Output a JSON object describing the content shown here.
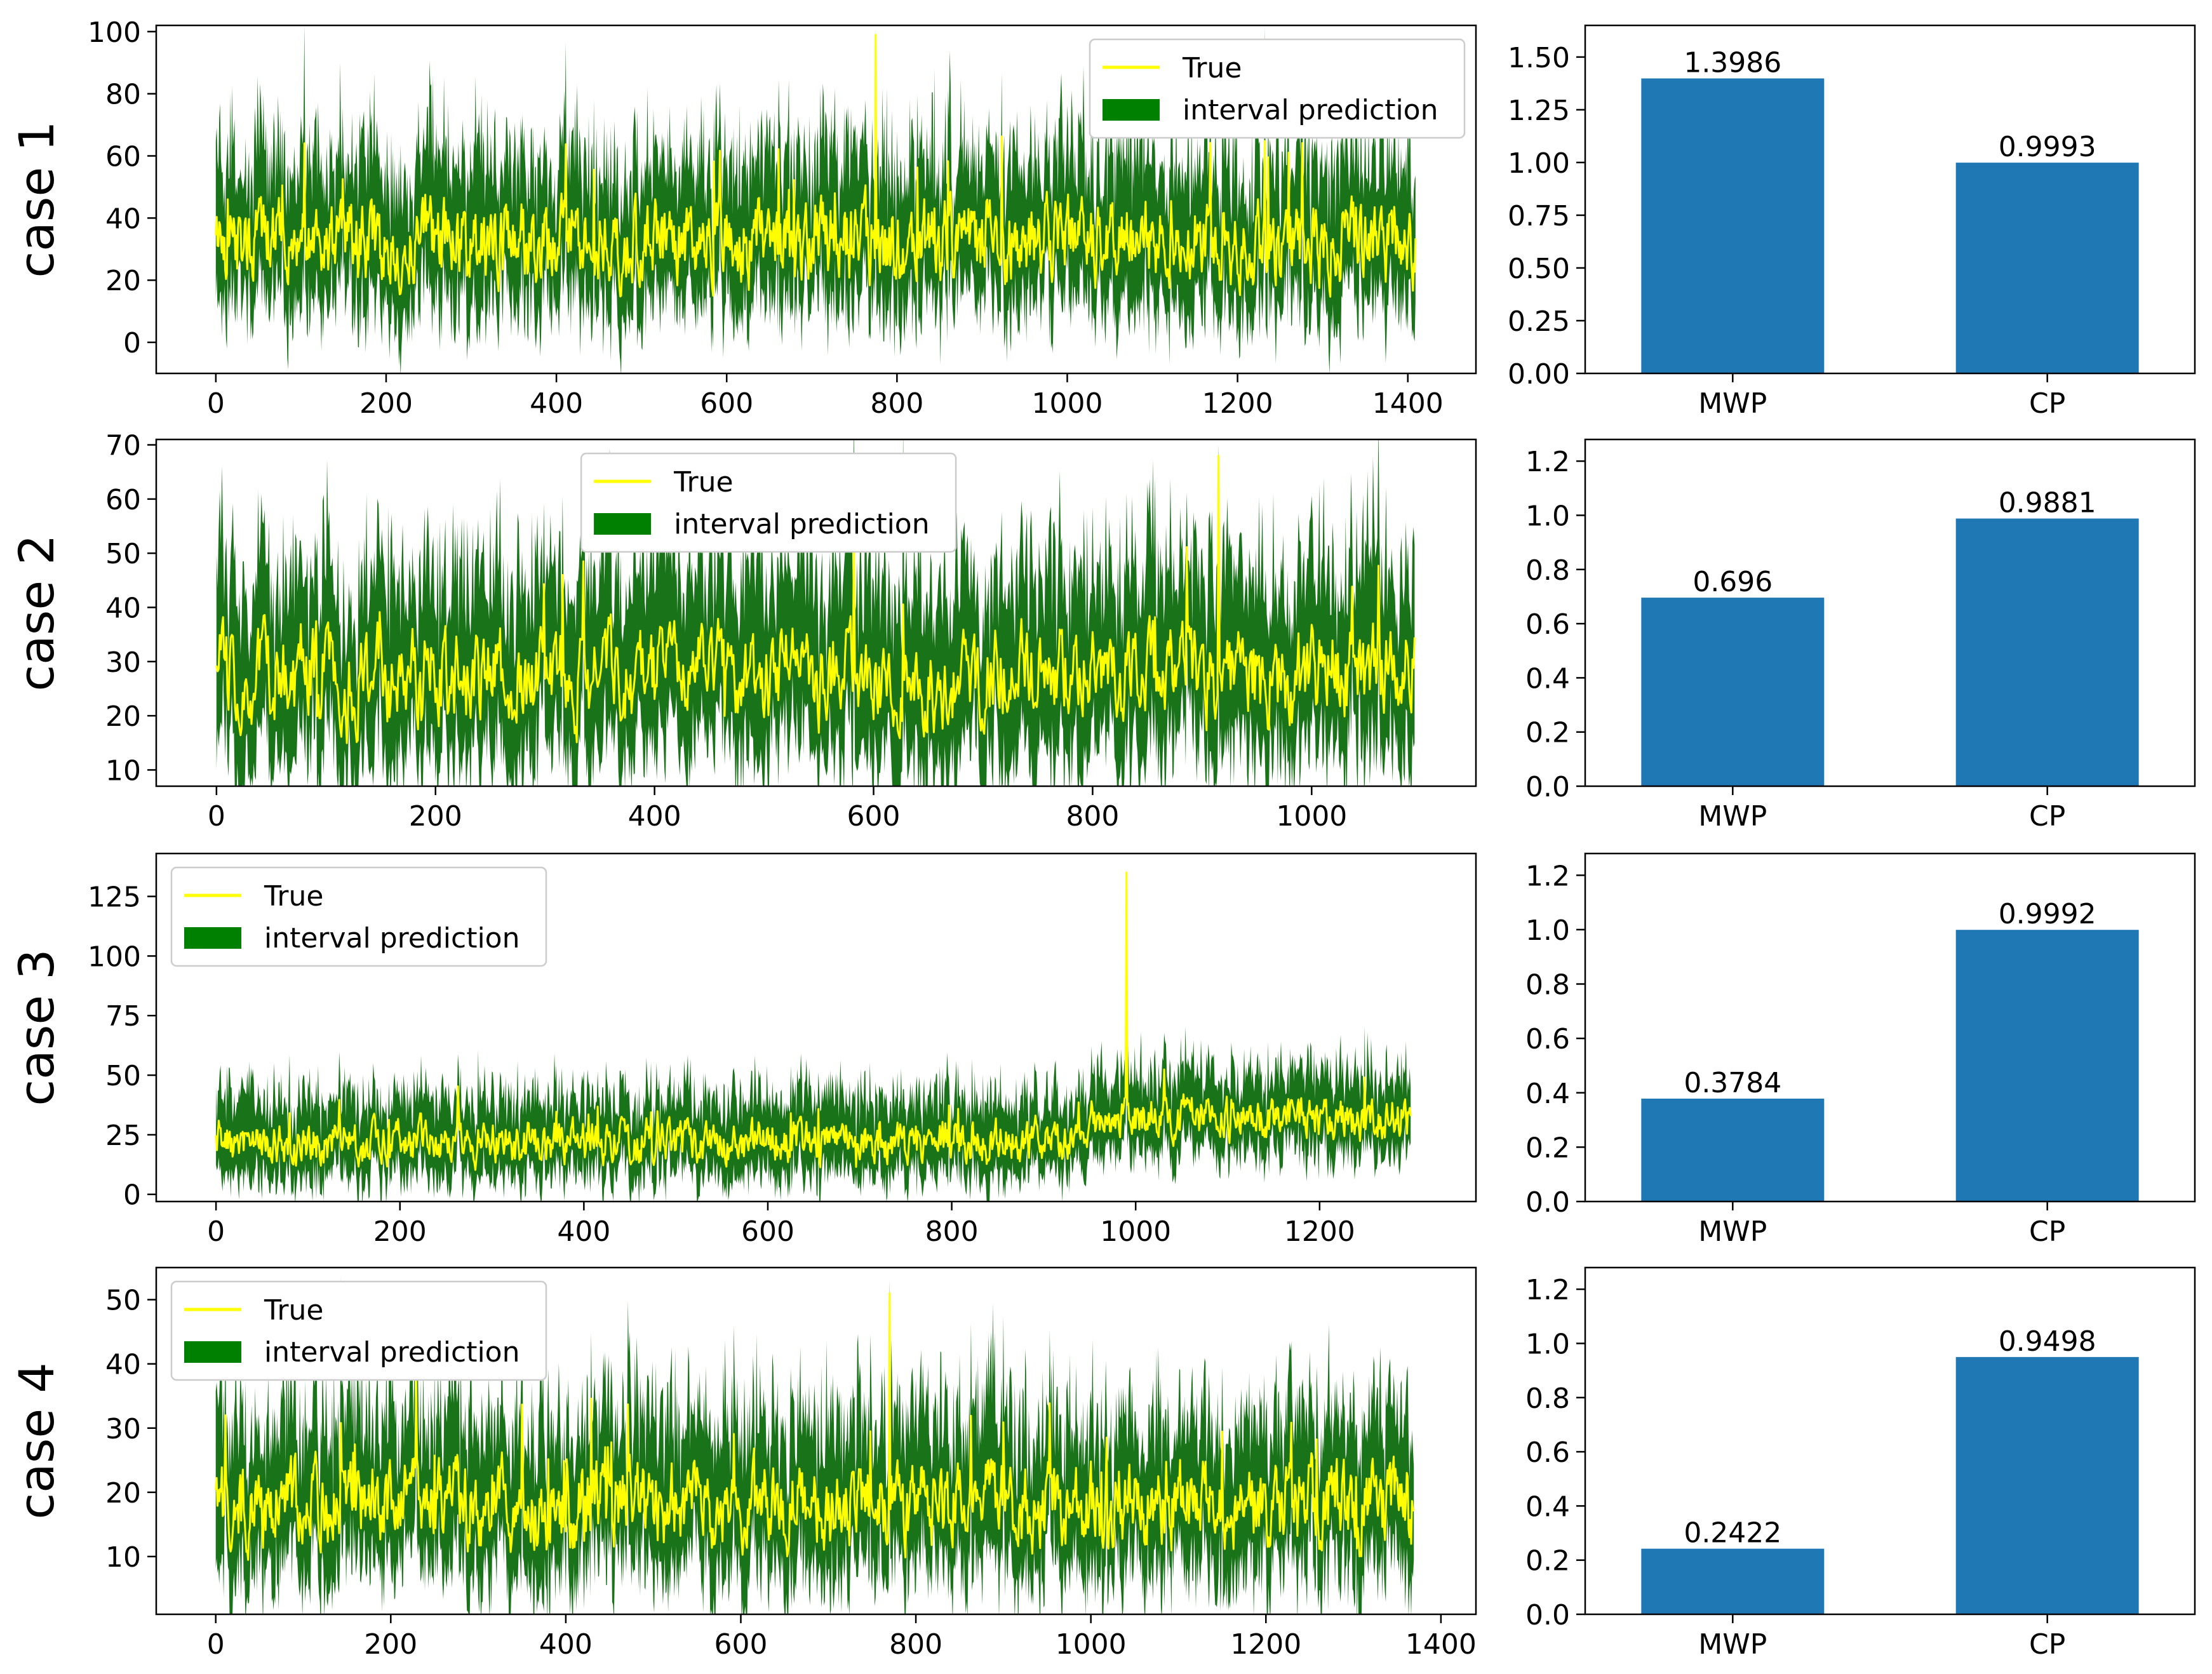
{
  "colors": {
    "true_line": "#ffff00",
    "interval_fill": "#006400",
    "legend_patch": "#008000",
    "bar": "#1f77b4"
  },
  "legend": {
    "true_label": "True",
    "interval_label": "interval prediction"
  },
  "chart_data": [
    {
      "id": "case1",
      "type": "line",
      "ylabel": "case 1",
      "n_points": 1410,
      "xlim": [
        -70,
        1480
      ],
      "ylim": [
        -10,
        102
      ],
      "xticks": [
        0,
        200,
        400,
        600,
        800,
        1000,
        1200,
        1400
      ],
      "yticks": [
        0,
        20,
        40,
        60,
        80,
        100
      ],
      "legend_position": "top-right",
      "series": [
        {
          "name": "True",
          "approx_mean": 32,
          "approx_spread": 10,
          "approx_range": [
            5,
            99
          ],
          "peak_x": 775,
          "peak_y": 99
        },
        {
          "name": "interval prediction",
          "approx_lower": 5,
          "approx_upper": 60
        }
      ]
    },
    {
      "id": "case1_metrics",
      "type": "bar",
      "categories": [
        "MWP",
        "CP"
      ],
      "values": [
        1.3986,
        0.9993
      ],
      "value_labels": [
        "1.3986",
        "0.9993"
      ],
      "ylim": [
        0,
        1.65
      ],
      "yticks": [
        "0.00",
        "0.25",
        "0.50",
        "0.75",
        "1.00",
        "1.25",
        "1.50"
      ]
    },
    {
      "id": "case2",
      "type": "line",
      "ylabel": "case 2",
      "n_points": 1095,
      "xlim": [
        -55,
        1150
      ],
      "ylim": [
        7,
        71
      ],
      "xticks": [
        0,
        200,
        400,
        600,
        800,
        1000
      ],
      "yticks": [
        10,
        20,
        30,
        40,
        50,
        60,
        70
      ],
      "legend_position": "top-center",
      "series": [
        {
          "name": "True",
          "approx_mean": 27,
          "approx_spread": 7,
          "approx_range": [
            8,
            68
          ],
          "peak_x": 915,
          "peak_y": 68
        },
        {
          "name": "interval prediction",
          "approx_lower": 8,
          "approx_upper": 50
        }
      ]
    },
    {
      "id": "case2_metrics",
      "type": "bar",
      "categories": [
        "MWP",
        "CP"
      ],
      "values": [
        0.696,
        0.9881
      ],
      "value_labels": [
        "0.696",
        "0.9881"
      ],
      "ylim": [
        0,
        1.28
      ],
      "yticks": [
        "0.0",
        "0.2",
        "0.4",
        "0.6",
        "0.8",
        "1.0",
        "1.2"
      ]
    },
    {
      "id": "case3",
      "type": "line",
      "ylabel": "case 3",
      "n_points": 1300,
      "xlim": [
        -65,
        1370
      ],
      "ylim": [
        -3,
        143
      ],
      "xticks": [
        0,
        200,
        400,
        600,
        800,
        1000,
        1200
      ],
      "yticks": [
        0,
        25,
        50,
        75,
        100,
        125
      ],
      "legend_position": "top-left",
      "series": [
        {
          "name": "True",
          "approx_mean": 22,
          "approx_spread": 7,
          "approx_range": [
            5,
            135
          ],
          "peak_x": 990,
          "peak_y": 135
        },
        {
          "name": "interval prediction",
          "approx_lower": 5,
          "approx_upper": 60
        }
      ]
    },
    {
      "id": "case3_metrics",
      "type": "bar",
      "categories": [
        "MWP",
        "CP"
      ],
      "values": [
        0.3784,
        0.9992
      ],
      "value_labels": [
        "0.3784",
        "0.9992"
      ],
      "ylim": [
        0,
        1.28
      ],
      "yticks": [
        "0.0",
        "0.2",
        "0.4",
        "0.6",
        "0.8",
        "1.0",
        "1.2"
      ]
    },
    {
      "id": "case4",
      "type": "line",
      "ylabel": "case 4",
      "n_points": 1370,
      "xlim": [
        -68,
        1440
      ],
      "ylim": [
        1,
        55
      ],
      "xticks": [
        0,
        200,
        400,
        600,
        800,
        1000,
        1200,
        1400
      ],
      "yticks": [
        10,
        20,
        30,
        40,
        50
      ],
      "legend_position": "top-left",
      "series": [
        {
          "name": "True",
          "approx_mean": 18,
          "approx_spread": 5,
          "approx_range": [
            4,
            51
          ],
          "peak_x": 770,
          "peak_y": 51
        },
        {
          "name": "interval prediction",
          "approx_lower": 5,
          "approx_upper": 40
        }
      ]
    },
    {
      "id": "case4_metrics",
      "type": "bar",
      "categories": [
        "MWP",
        "CP"
      ],
      "values": [
        0.2422,
        0.9498
      ],
      "value_labels": [
        "0.2422",
        "0.9498"
      ],
      "ylim": [
        0,
        1.28
      ],
      "yticks": [
        "0.0",
        "0.2",
        "0.4",
        "0.6",
        "0.8",
        "1.0",
        "1.2"
      ]
    }
  ]
}
